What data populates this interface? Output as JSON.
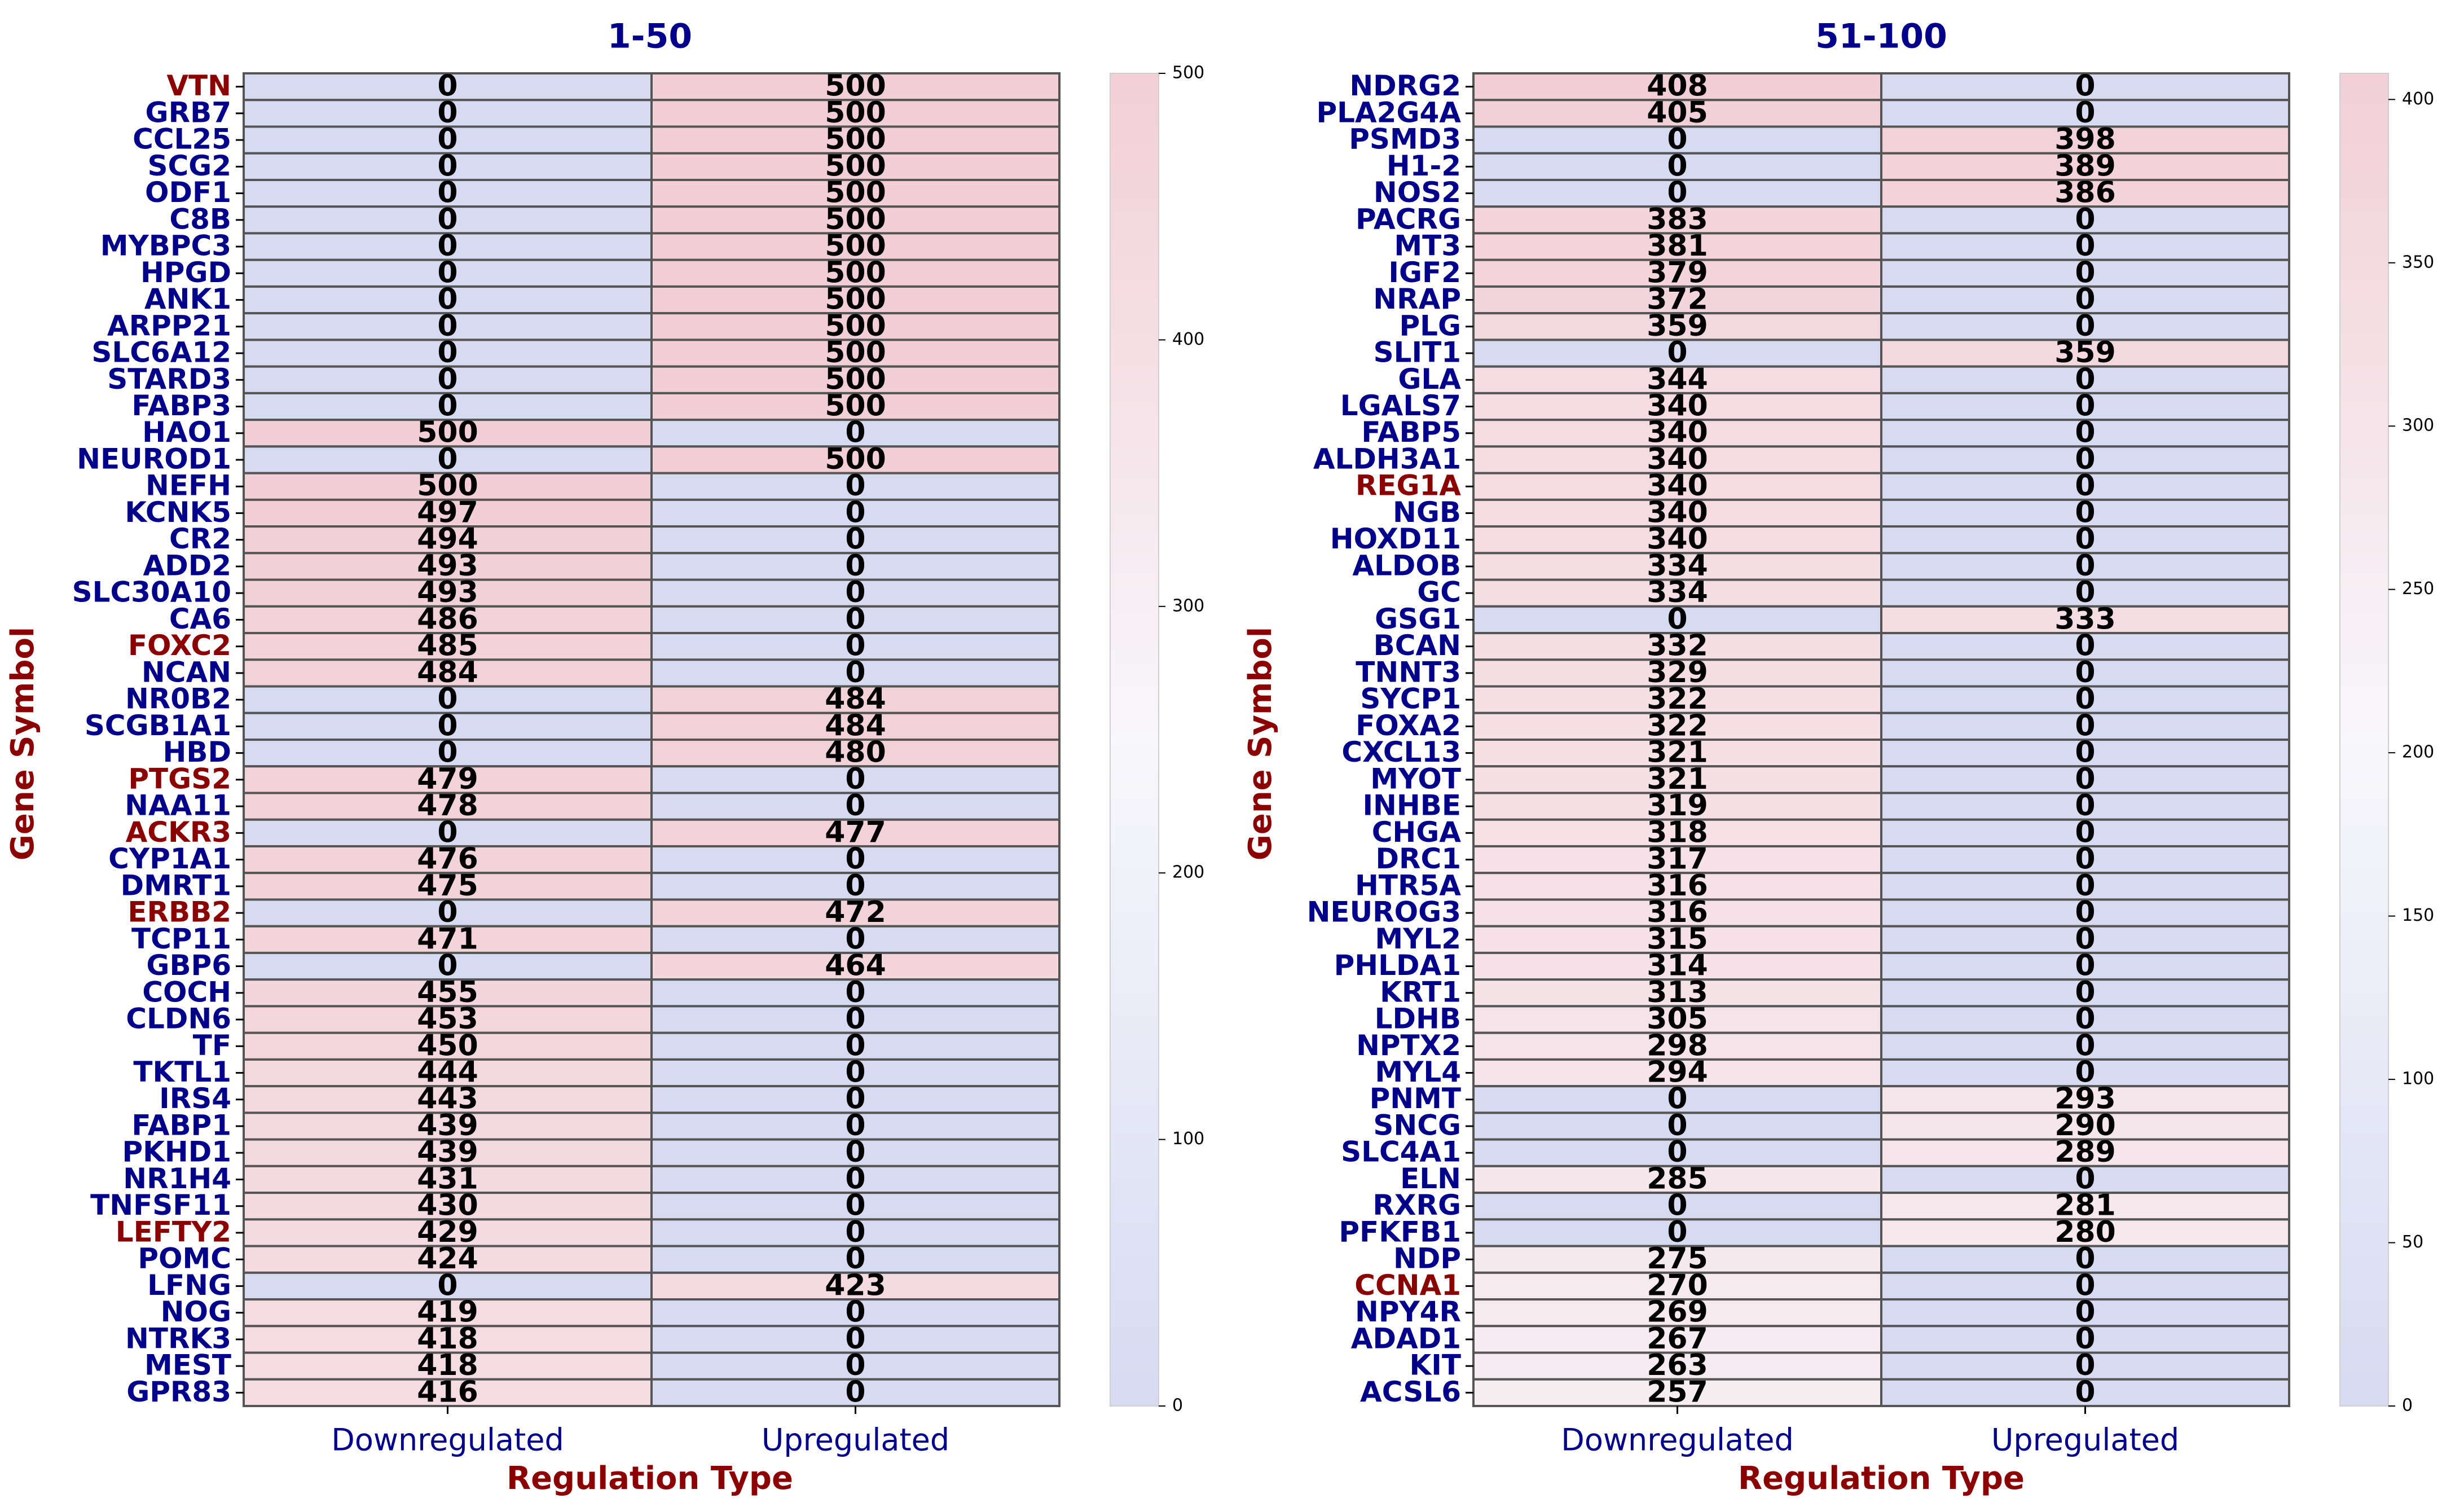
{
  "colors": {
    "gene_default": "#00008B",
    "gene_highlight": "#8B0000",
    "axis_title": "#8B0000",
    "tick_label": "#00008B",
    "panel_title": "#00008B",
    "cell_border": "#555555",
    "cell_text": "#000000",
    "cmap_low": "#d6dbf2",
    "cmap_mid": "#f8f7fb",
    "cmap_high": "#f2cfd6"
  },
  "chart_data": [
    {
      "type": "heatmap",
      "title": "1-50",
      "xlabel": "Regulation Type",
      "ylabel": "Gene Symbol",
      "columns": [
        "Downregulated",
        "Upregulated"
      ],
      "vmin": 0,
      "vmax": 500,
      "colorbar_ticks": [
        "0",
        "100",
        "200",
        "300",
        "400",
        "500"
      ],
      "highlighted": [
        "VTN",
        "FOXC2",
        "PTGS2",
        "ACKR3",
        "ERBB2",
        "LEFTY2"
      ],
      "genes": [
        "VTN",
        "GRB7",
        "CCL25",
        "SCG2",
        "ODF1",
        "C8B",
        "MYBPC3",
        "HPGD",
        "ANK1",
        "ARPP21",
        "SLC6A12",
        "STARD3",
        "FABP3",
        "HAO1",
        "NEUROD1",
        "NEFH",
        "KCNK5",
        "CR2",
        "ADD2",
        "SLC30A10",
        "CA6",
        "FOXC2",
        "NCAN",
        "NR0B2",
        "SCGB1A1",
        "HBD",
        "PTGS2",
        "NAA11",
        "ACKR3",
        "CYP1A1",
        "DMRT1",
        "ERBB2",
        "TCP11",
        "GBP6",
        "COCH",
        "CLDN6",
        "TF",
        "TKTL1",
        "IRS4",
        "FABP1",
        "PKHD1",
        "NR1H4",
        "TNFSF11",
        "LEFTY2",
        "POMC",
        "LFNG",
        "NOG",
        "NTRK3",
        "MEST",
        "GPR83"
      ],
      "values": [
        [
          0,
          500
        ],
        [
          0,
          500
        ],
        [
          0,
          500
        ],
        [
          0,
          500
        ],
        [
          0,
          500
        ],
        [
          0,
          500
        ],
        [
          0,
          500
        ],
        [
          0,
          500
        ],
        [
          0,
          500
        ],
        [
          0,
          500
        ],
        [
          0,
          500
        ],
        [
          0,
          500
        ],
        [
          0,
          500
        ],
        [
          500,
          0
        ],
        [
          0,
          500
        ],
        [
          500,
          0
        ],
        [
          497,
          0
        ],
        [
          494,
          0
        ],
        [
          493,
          0
        ],
        [
          493,
          0
        ],
        [
          486,
          0
        ],
        [
          485,
          0
        ],
        [
          484,
          0
        ],
        [
          0,
          484
        ],
        [
          0,
          484
        ],
        [
          0,
          480
        ],
        [
          479,
          0
        ],
        [
          478,
          0
        ],
        [
          0,
          477
        ],
        [
          476,
          0
        ],
        [
          475,
          0
        ],
        [
          0,
          472
        ],
        [
          471,
          0
        ],
        [
          0,
          464
        ],
        [
          455,
          0
        ],
        [
          453,
          0
        ],
        [
          450,
          0
        ],
        [
          444,
          0
        ],
        [
          443,
          0
        ],
        [
          439,
          0
        ],
        [
          439,
          0
        ],
        [
          431,
          0
        ],
        [
          430,
          0
        ],
        [
          429,
          0
        ],
        [
          424,
          0
        ],
        [
          0,
          423
        ],
        [
          419,
          0
        ],
        [
          418,
          0
        ],
        [
          418,
          0
        ],
        [
          416,
          0
        ]
      ]
    },
    {
      "type": "heatmap",
      "title": "51-100",
      "xlabel": "Regulation Type",
      "ylabel": "Gene Symbol",
      "columns": [
        "Downregulated",
        "Upregulated"
      ],
      "vmin": 0,
      "vmax": 408,
      "colorbar_ticks": [
        "0",
        "50",
        "100",
        "150",
        "200",
        "250",
        "300",
        "350",
        "400"
      ],
      "highlighted": [
        "REG1A",
        "CCNA1"
      ],
      "genes": [
        "NDRG2",
        "PLA2G4A",
        "PSMD3",
        "H1-2",
        "NOS2",
        "PACRG",
        "MT3",
        "IGF2",
        "NRAP",
        "PLG",
        "SLIT1",
        "GLA",
        "LGALS7",
        "FABP5",
        "ALDH3A1",
        "REG1A",
        "NGB",
        "HOXD11",
        "ALDOB",
        "GC",
        "GSG1",
        "BCAN",
        "TNNT3",
        "SYCP1",
        "FOXA2",
        "CXCL13",
        "MYOT",
        "INHBE",
        "CHGA",
        "DRC1",
        "HTR5A",
        "NEUROG3",
        "MYL2",
        "PHLDA1",
        "KRT1",
        "LDHB",
        "NPTX2",
        "MYL4",
        "PNMT",
        "SNCG",
        "SLC4A1",
        "ELN",
        "RXRG",
        "PFKFB1",
        "NDP",
        "CCNA1",
        "NPY4R",
        "ADAD1",
        "KIT",
        "ACSL6"
      ],
      "values": [
        [
          408,
          0
        ],
        [
          405,
          0
        ],
        [
          0,
          398
        ],
        [
          0,
          389
        ],
        [
          0,
          386
        ],
        [
          383,
          0
        ],
        [
          381,
          0
        ],
        [
          379,
          0
        ],
        [
          372,
          0
        ],
        [
          359,
          0
        ],
        [
          0,
          359
        ],
        [
          344,
          0
        ],
        [
          340,
          0
        ],
        [
          340,
          0
        ],
        [
          340,
          0
        ],
        [
          340,
          0
        ],
        [
          340,
          0
        ],
        [
          340,
          0
        ],
        [
          334,
          0
        ],
        [
          334,
          0
        ],
        [
          0,
          333
        ],
        [
          332,
          0
        ],
        [
          329,
          0
        ],
        [
          322,
          0
        ],
        [
          322,
          0
        ],
        [
          321,
          0
        ],
        [
          321,
          0
        ],
        [
          319,
          0
        ],
        [
          318,
          0
        ],
        [
          317,
          0
        ],
        [
          316,
          0
        ],
        [
          316,
          0
        ],
        [
          315,
          0
        ],
        [
          314,
          0
        ],
        [
          313,
          0
        ],
        [
          305,
          0
        ],
        [
          298,
          0
        ],
        [
          294,
          0
        ],
        [
          0,
          293
        ],
        [
          0,
          290
        ],
        [
          0,
          289
        ],
        [
          285,
          0
        ],
        [
          0,
          281
        ],
        [
          0,
          280
        ],
        [
          275,
          0
        ],
        [
          270,
          0
        ],
        [
          269,
          0
        ],
        [
          267,
          0
        ],
        [
          263,
          0
        ],
        [
          257,
          0
        ]
      ]
    }
  ]
}
